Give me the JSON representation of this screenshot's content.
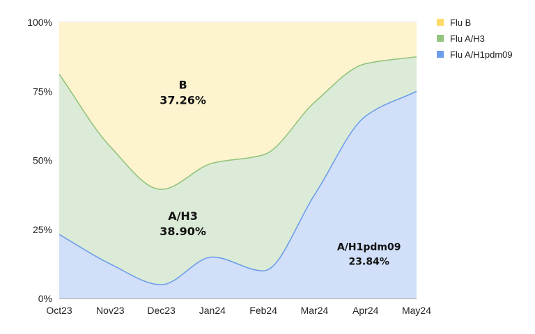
{
  "chart_data": {
    "type": "area",
    "stacked": true,
    "normalized": true,
    "title": "",
    "xlabel": "",
    "ylabel": "",
    "categories": [
      "Oct23",
      "Nov23",
      "Dec23",
      "Jan24",
      "Feb24",
      "Mar24",
      "Apr24",
      "May24"
    ],
    "ylim": [
      0,
      100
    ],
    "yticks": [
      0,
      25,
      50,
      75,
      100
    ],
    "ytick_labels": [
      "0%",
      "25%",
      "50%",
      "75%",
      "100%"
    ],
    "grid": true,
    "legend_position": "top-right",
    "series": [
      {
        "name": "Flu A/H1pdm09",
        "color": "#6d9eeb",
        "fill": "#d1dff8",
        "values": [
          23.2,
          12.5,
          5.0,
          15.0,
          10.0,
          37.5,
          66.0,
          75.0
        ]
      },
      {
        "name": "Flu A/H3",
        "color": "#93c47d",
        "fill": "#dcebd7",
        "values": [
          58.0,
          42.5,
          34.5,
          34.0,
          42.0,
          33.5,
          19.0,
          12.5
        ]
      },
      {
        "name": "Flu B",
        "color": "#ffd966",
        "fill": "#fdf3cf",
        "values": [
          18.8,
          45.0,
          60.5,
          51.0,
          48.0,
          29.0,
          15.0,
          12.5
        ]
      }
    ],
    "legend": [
      "Flu B",
      "Flu A/H3",
      "Flu A/H1pdm09"
    ],
    "annotations": [
      {
        "series": "Flu B",
        "name": "B",
        "value": "37.26%",
        "x": "Dec23",
        "y": 76
      },
      {
        "series": "Flu A/H3",
        "name": "A/H3",
        "value": "38.90%",
        "x": "Dec23",
        "y": 28.5
      },
      {
        "series": "Flu A/H1pdm09",
        "name": "A/H1pdm09",
        "value": "23.84%",
        "x": "Apr24",
        "y": 17.5
      }
    ]
  }
}
